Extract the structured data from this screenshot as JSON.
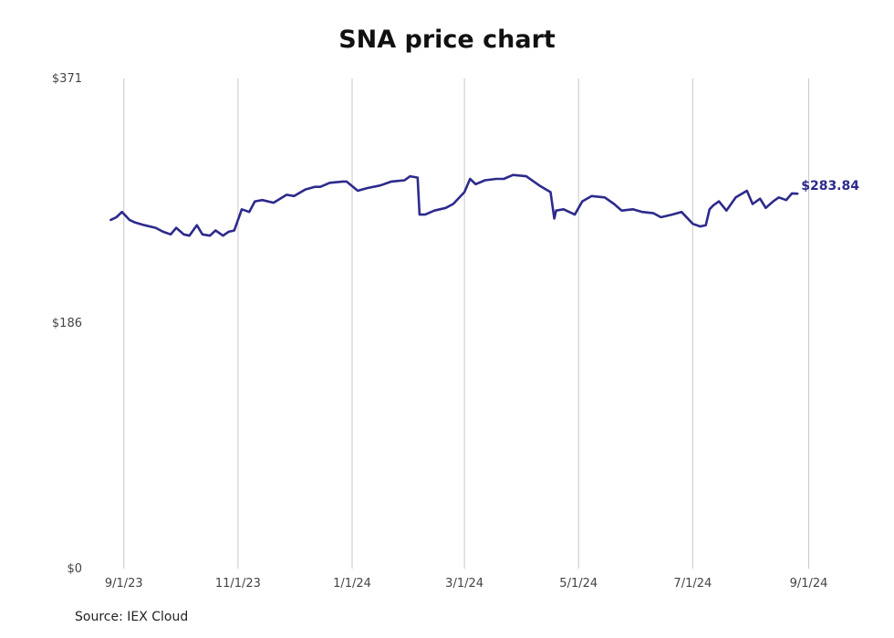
{
  "chart_data": {
    "type": "line",
    "title": "SNA price chart",
    "source": "Source: IEX Cloud",
    "xlabel": "",
    "ylabel": "",
    "ylim": [
      0,
      371
    ],
    "yticks": [
      {
        "value": 0,
        "label": "$0"
      },
      {
        "value": 186,
        "label": "$186"
      },
      {
        "value": 371,
        "label": "$371"
      }
    ],
    "xlim": [
      "2023-08-17",
      "2024-09-10"
    ],
    "xticks": [
      {
        "date": "2023-09-01",
        "label": "9/1/23"
      },
      {
        "date": "2023-11-01",
        "label": "11/1/23"
      },
      {
        "date": "2024-01-01",
        "label": "1/1/24"
      },
      {
        "date": "2024-03-01",
        "label": "3/1/24"
      },
      {
        "date": "2024-05-01",
        "label": "5/1/24"
      },
      {
        "date": "2024-07-01",
        "label": "7/1/24"
      },
      {
        "date": "2024-09-01",
        "label": "9/1/24"
      }
    ],
    "grid": {
      "vertical": true,
      "horizontal": false
    },
    "colors": {
      "line": "#2d2a8c",
      "grid": "#c8c8c8",
      "tick_text": "#444444"
    },
    "last_value_label": "$283.84",
    "series": [
      {
        "x": [
          "2023-08-25",
          "2023-08-28",
          "2023-08-31",
          "2023-09-04",
          "2023-09-07",
          "2023-09-12",
          "2023-09-18",
          "2023-09-22",
          "2023-09-26",
          "2023-09-29",
          "2023-10-03",
          "2023-10-06",
          "2023-10-10",
          "2023-10-13",
          "2023-10-17",
          "2023-10-20",
          "2023-10-24",
          "2023-10-27",
          "2023-10-30",
          "2023-11-03",
          "2023-11-07",
          "2023-11-10",
          "2023-11-14",
          "2023-11-20",
          "2023-11-27",
          "2023-12-01",
          "2023-12-07",
          "2023-12-12",
          "2023-12-15",
          "2023-12-20",
          "2023-12-27",
          "2023-12-29",
          "2024-01-04",
          "2024-01-09",
          "2024-01-16",
          "2024-01-22",
          "2024-01-29",
          "2024-02-01",
          "2024-02-05",
          "2024-02-06",
          "2024-02-09",
          "2024-02-14",
          "2024-02-20",
          "2024-02-24",
          "2024-03-01",
          "2024-03-04",
          "2024-03-07",
          "2024-03-12",
          "2024-03-18",
          "2024-03-22",
          "2024-03-27",
          "2024-04-03",
          "2024-04-10",
          "2024-04-16",
          "2024-04-18",
          "2024-04-19",
          "2024-04-23",
          "2024-04-29",
          "2024-05-03",
          "2024-05-08",
          "2024-05-15",
          "2024-05-20",
          "2024-05-24",
          "2024-05-30",
          "2024-06-04",
          "2024-06-10",
          "2024-06-14",
          "2024-06-20",
          "2024-06-25",
          "2024-07-01",
          "2024-07-05",
          "2024-07-08",
          "2024-07-10",
          "2024-07-12",
          "2024-07-15",
          "2024-07-19",
          "2024-07-24",
          "2024-07-30",
          "2024-08-02",
          "2024-08-06",
          "2024-08-09",
          "2024-08-13",
          "2024-08-16",
          "2024-08-20",
          "2024-08-23",
          "2024-08-26"
        ],
        "values": [
          264.0,
          266.0,
          270.0,
          264.0,
          262.0,
          260.0,
          258.0,
          255.0,
          253.0,
          258.0,
          253.0,
          252.0,
          260.0,
          253.0,
          252.0,
          256.0,
          252.0,
          255.0,
          256.0,
          272.0,
          270.0,
          278.0,
          279.0,
          277.0,
          283.0,
          282.0,
          287.0,
          289.0,
          289.0,
          292.0,
          293.0,
          293.0,
          286.0,
          288.0,
          290.0,
          293.0,
          294.0,
          297.0,
          296.0,
          268.0,
          268.0,
          271.0,
          273.0,
          276.0,
          285.0,
          295.0,
          291.0,
          294.0,
          295.0,
          295.0,
          298.0,
          297.0,
          290.0,
          285.0,
          265.0,
          271.0,
          272.0,
          268.0,
          278.0,
          282.0,
          281.0,
          276.0,
          271.0,
          272.0,
          270.0,
          269.0,
          266.0,
          268.0,
          270.0,
          261.0,
          259.0,
          260.0,
          272.0,
          275.0,
          278.0,
          271.0,
          281.0,
          286.0,
          276.0,
          280.0,
          273.0,
          278.0,
          281.0,
          279.0,
          284.0,
          283.84
        ]
      }
    ]
  }
}
